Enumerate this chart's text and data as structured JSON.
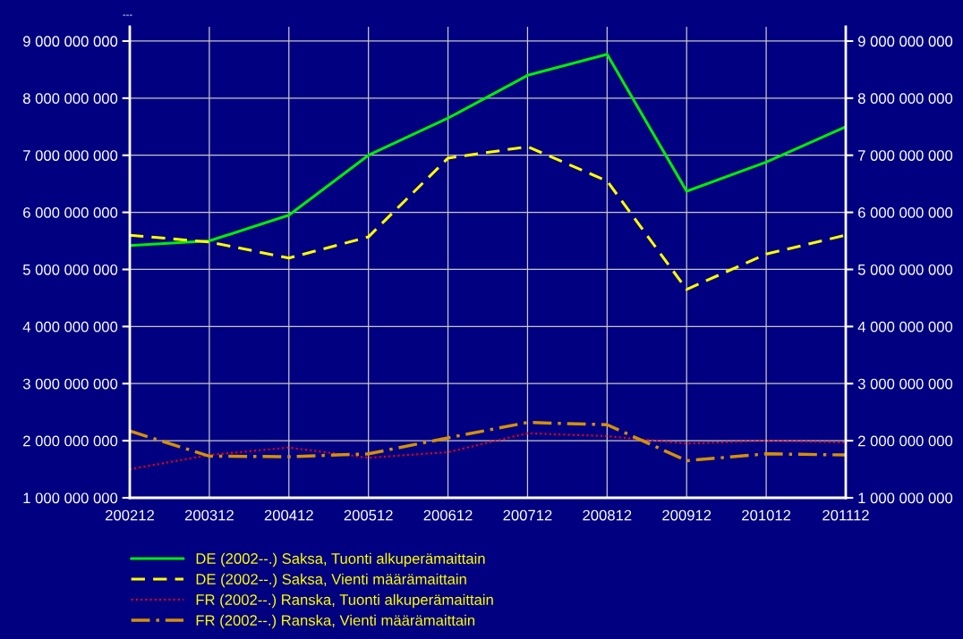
{
  "chart_data": {
    "type": "line",
    "title": "---",
    "categories": [
      "200212",
      "200312",
      "200412",
      "200512",
      "200612",
      "200712",
      "200812",
      "200912",
      "201012",
      "201112"
    ],
    "series": [
      {
        "name": "DE (2002--.) Saksa, Tuonti alkuperämaittain",
        "color": "#00ee00",
        "line_style": "solid",
        "values": [
          5420000000,
          5500000000,
          5950000000,
          7000000000,
          7650000000,
          8400000000,
          8770000000,
          6370000000,
          6880000000,
          7500000000
        ]
      },
      {
        "name": "DE (2002--.) Saksa, Vienti määrämaittain",
        "color": "#ffff00",
        "line_style": "dashed",
        "values": [
          5600000000,
          5480000000,
          5200000000,
          5570000000,
          6950000000,
          7150000000,
          6550000000,
          4650000000,
          5270000000,
          5600000000
        ]
      },
      {
        "name": "FR (2002--.) Ranska, Tuonti alkuperämaittain",
        "color": "#ff0000",
        "line_style": "dotted",
        "values": [
          1500000000,
          1750000000,
          1880000000,
          1700000000,
          1800000000,
          2130000000,
          2080000000,
          1950000000,
          2000000000,
          1970000000
        ]
      },
      {
        "name": "FR (2002--.) Ranska, Vienti määrämaittain",
        "color": "#d4900a",
        "line_style": "dashdot",
        "values": [
          2170000000,
          1730000000,
          1720000000,
          1770000000,
          2050000000,
          2320000000,
          2280000000,
          1650000000,
          1770000000,
          1750000000
        ]
      }
    ],
    "ylim": [
      1000000000,
      9250000000
    ],
    "yticks": [
      {
        "value": 1000000000,
        "label": "1 000 000 000"
      },
      {
        "value": 2000000000,
        "label": "2 000 000 000"
      },
      {
        "value": 3000000000,
        "label": "3 000 000 000"
      },
      {
        "value": 4000000000,
        "label": "4 000 000 000"
      },
      {
        "value": 5000000000,
        "label": "5 000 000 000"
      },
      {
        "value": 6000000000,
        "label": "6 000 000 000"
      },
      {
        "value": 7000000000,
        "label": "7 000 000 000"
      },
      {
        "value": 8000000000,
        "label": "8 000 000 000"
      },
      {
        "value": 9000000000,
        "label": "9 000 000 000"
      }
    ],
    "y2lim": [
      1000000000,
      9250000000
    ],
    "y2ticks": [
      {
        "value": 1000000000,
        "label": "1 000 000 000"
      },
      {
        "value": 2000000000,
        "label": "2 000 000 000"
      },
      {
        "value": 3000000000,
        "label": "3 000 000 000"
      },
      {
        "value": 4000000000,
        "label": "4 000 000 000"
      },
      {
        "value": 5000000000,
        "label": "5 000 000 000"
      },
      {
        "value": 6000000000,
        "label": "6 000 000 000"
      },
      {
        "value": 7000000000,
        "label": "7 000 000 000"
      },
      {
        "value": 8000000000,
        "label": "8 000 000 000"
      },
      {
        "value": 9000000000,
        "label": "9 000 000 000"
      }
    ],
    "grid": true,
    "legend": "bottom"
  }
}
